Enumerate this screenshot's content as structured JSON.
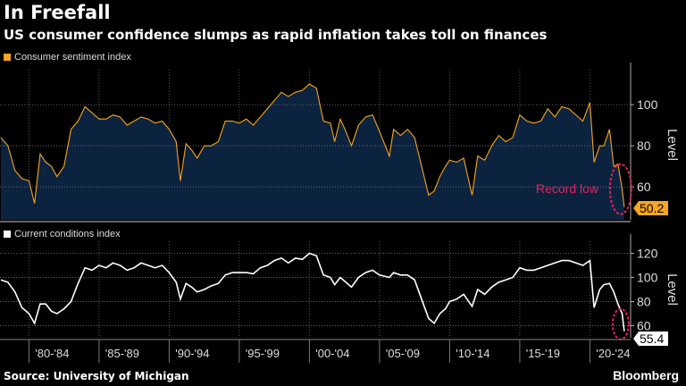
{
  "title": "In Freefall",
  "subtitle": "US consumer confidence slumps as rapid inflation takes toll on finances",
  "source": "Source: University of Michigan",
  "brand": "Bloomberg",
  "chart_data": [
    {
      "type": "area",
      "legend": "Consumer sentiment index",
      "ylabel": "Level",
      "ylim": [
        44,
        117
      ],
      "yticks": [
        60,
        80,
        100
      ],
      "color": "#f5a623",
      "fill": "#0c2340",
      "last_value_label": "50.2",
      "annotation": "Record low",
      "annotation_color": "#e0245e",
      "grid": true,
      "x": [
        1978,
        1978.5,
        1979,
        1979.5,
        1980,
        1980.4,
        1980.8,
        1981.2,
        1981.6,
        1982,
        1982.5,
        1983,
        1983.5,
        1984,
        1984.5,
        1985,
        1985.5,
        1986,
        1986.5,
        1987,
        1987.5,
        1988,
        1988.5,
        1989,
        1989.5,
        1990,
        1990.5,
        1990.8,
        1991.2,
        1991.6,
        1992,
        1992.5,
        1993,
        1993.5,
        1994,
        1994.5,
        1995,
        1995.5,
        1996,
        1996.5,
        1997,
        1997.5,
        1998,
        1998.5,
        1999,
        1999.5,
        2000,
        2000.5,
        2001,
        2001.5,
        2001.8,
        2002.2,
        2002.6,
        2003,
        2003.5,
        2004,
        2004.5,
        2005,
        2005.7,
        2006,
        2006.5,
        2007,
        2007.5,
        2008,
        2008.5,
        2008.9,
        2009.3,
        2009.7,
        2010,
        2010.5,
        2011,
        2011.6,
        2012,
        2012.5,
        2013,
        2013.5,
        2014,
        2014.5,
        2015,
        2015.5,
        2016,
        2016.5,
        2017,
        2017.5,
        2018,
        2018.5,
        2019,
        2019.5,
        2020,
        2020.3,
        2020.7,
        2021,
        2021.4,
        2021.7,
        2022,
        2022.3,
        2022.45
      ],
      "values": [
        84,
        80,
        68,
        64,
        63,
        52,
        76,
        72,
        70,
        65,
        70,
        88,
        92,
        99,
        96,
        93,
        93,
        95,
        94,
        90,
        92,
        94,
        93,
        91,
        92,
        88,
        82,
        63,
        81,
        78,
        74,
        80,
        80,
        82,
        92,
        92,
        91,
        93,
        90,
        94,
        98,
        102,
        106,
        104,
        106,
        107,
        110,
        108,
        92,
        91,
        82,
        93,
        87,
        80,
        90,
        94,
        95,
        87,
        75,
        88,
        85,
        88,
        84,
        70,
        56,
        58,
        65,
        70,
        73,
        72,
        74,
        56,
        75,
        73,
        80,
        85,
        82,
        84,
        95,
        92,
        91,
        92,
        98,
        94,
        99,
        98,
        95,
        92,
        101,
        72,
        80,
        80,
        88,
        70,
        71,
        59,
        50.2
      ]
    },
    {
      "type": "line",
      "legend": "Current conditions index",
      "ylabel": "Level",
      "ylim": [
        50,
        130
      ],
      "yticks": [
        60,
        80,
        100,
        120
      ],
      "color": "#ffffff",
      "last_value_label": "55.4",
      "annotation_color": "#e0245e",
      "grid": true,
      "x": [
        1978,
        1978.5,
        1979,
        1979.5,
        1980,
        1980.4,
        1980.8,
        1981.2,
        1981.6,
        1982,
        1982.5,
        1983,
        1983.5,
        1984,
        1984.5,
        1985,
        1985.5,
        1986,
        1986.5,
        1987,
        1987.5,
        1988,
        1988.5,
        1989,
        1989.5,
        1990,
        1990.5,
        1990.8,
        1991.2,
        1991.6,
        1992,
        1992.5,
        1993,
        1993.5,
        1994,
        1994.5,
        1995,
        1995.5,
        1996,
        1996.5,
        1997,
        1997.5,
        1998,
        1998.5,
        1999,
        1999.5,
        2000,
        2000.5,
        2001,
        2001.5,
        2001.8,
        2002.2,
        2002.6,
        2003,
        2003.5,
        2004,
        2004.5,
        2005,
        2005.7,
        2006,
        2006.5,
        2007,
        2007.5,
        2008,
        2008.5,
        2008.9,
        2009.3,
        2009.7,
        2010,
        2010.5,
        2011,
        2011.6,
        2012,
        2012.5,
        2013,
        2013.5,
        2014,
        2014.5,
        2015,
        2015.5,
        2016,
        2016.5,
        2017,
        2017.5,
        2018,
        2018.5,
        2019,
        2019.5,
        2020,
        2020.3,
        2020.7,
        2021,
        2021.4,
        2021.7,
        2022,
        2022.3,
        2022.45
      ],
      "values": [
        98,
        96,
        88,
        75,
        70,
        62,
        78,
        78,
        72,
        70,
        74,
        80,
        95,
        108,
        106,
        110,
        108,
        112,
        110,
        106,
        108,
        112,
        110,
        108,
        110,
        104,
        96,
        82,
        95,
        92,
        88,
        90,
        93,
        95,
        102,
        104,
        104,
        104,
        103,
        108,
        110,
        114,
        116,
        112,
        116,
        115,
        120,
        118,
        102,
        100,
        94,
        100,
        96,
        92,
        100,
        104,
        106,
        102,
        100,
        104,
        102,
        102,
        98,
        82,
        66,
        62,
        70,
        74,
        80,
        82,
        86,
        76,
        90,
        86,
        92,
        96,
        98,
        100,
        108,
        106,
        106,
        108,
        110,
        112,
        114,
        114,
        112,
        110,
        114,
        75,
        90,
        94,
        95,
        88,
        78,
        70,
        55.4
      ]
    }
  ],
  "xaxis": {
    "tick_labels": [
      "'80-'84",
      "'85-'89",
      "'90-'94",
      "'95-'99",
      "'00-'04",
      "'05-'09",
      "'10-'14",
      "'15-'19",
      "'20-'24"
    ],
    "tick_years": [
      1980,
      1985,
      1990,
      1995,
      2000,
      2005,
      2010,
      2015,
      2020
    ]
  }
}
